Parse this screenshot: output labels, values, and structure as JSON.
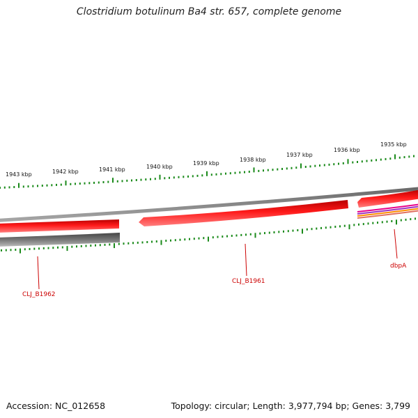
{
  "title": "Clostridium botulinum Ba4 str. 657, complete genome",
  "footer": {
    "accession": "Accession: NC_012658",
    "summary": "Topology: circular; Length: 3,977,794 bp; Genes: 3,799"
  },
  "ruler": {
    "labels": [
      "1943 kbp",
      "1942 kbp",
      "1941 kbp",
      "1940 kbp",
      "1939 kbp",
      "1938 kbp",
      "1937 kbp",
      "1936 kbp",
      "1935 kbp"
    ]
  },
  "genes": [
    {
      "label": "CLJ_B1962",
      "color": "#cc0000"
    },
    {
      "label": "CLJ_B1961",
      "color": "#cc0000"
    },
    {
      "label": "dbpA",
      "color": "#cc0000"
    }
  ],
  "colors": {
    "gene": "#ee0000",
    "backbone": "#888888",
    "tick": "#1a8a1a",
    "label": "#cc0000"
  }
}
